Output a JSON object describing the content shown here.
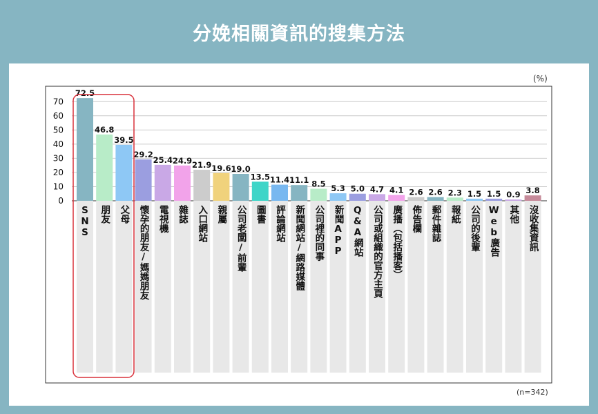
{
  "title": "分娩相關資訊的搜集方法",
  "unit": "(%)",
  "sample_size": "(n=342)",
  "colors": {
    "background": "#86b5c2",
    "highlight_box": "#d9303a",
    "bar_track": "#e8e8e8",
    "axis": "#333333",
    "grid": "#cccccc"
  },
  "highlight": [
    "SNS",
    "朋友",
    "父母"
  ],
  "chart_data": {
    "type": "bar",
    "title": "分娩相關資訊的搜集方法",
    "xlabel": "",
    "ylabel": "",
    "ylim": [
      0,
      75
    ],
    "yticks": [
      0,
      10,
      20,
      30,
      40,
      50,
      60,
      70
    ],
    "grid": true,
    "categories": [
      "SNS",
      "朋友",
      "父母",
      "懷孕的朋友/媽媽朋友",
      "電視機",
      "雜誌",
      "入口網站",
      "親屬",
      "公司老闆/前輩",
      "圖書",
      "評論網站",
      "新聞網站/網路媒體",
      "公司裡的同事",
      "新聞APP",
      "Q&A網站",
      "公司或組織的官方主頁",
      "廣播（包括播客）",
      "佈告欄",
      "郵件雜誌",
      "報紙",
      "公司的後輩",
      "Web廣告",
      "其他",
      "沒收集資訊"
    ],
    "value_labels": [
      "72.5",
      "46.8",
      "39.5",
      "29.2",
      "25.4",
      "24.9",
      "21.9",
      "19.6",
      "19.0",
      "13.5",
      "11.4",
      "11.1",
      "8.5",
      "5.3",
      "5.0",
      "4.7",
      "4.1",
      "2.6",
      "2.6",
      "2.3",
      "1.5",
      "1.5",
      "0.9",
      "3.8"
    ],
    "values": [
      72.5,
      46.8,
      39.5,
      29.2,
      25.4,
      24.9,
      21.9,
      19.6,
      19.0,
      13.5,
      11.4,
      11.1,
      8.5,
      5.3,
      5.0,
      4.7,
      4.1,
      2.6,
      2.6,
      2.3,
      1.5,
      1.5,
      0.9,
      3.8
    ],
    "bar_colors": [
      "#86b5c2",
      "#b8ecc8",
      "#8ec8f5",
      "#9b9ee0",
      "#c9a8e6",
      "#f2a3ea",
      "#cccccc",
      "#f0d27c",
      "#86b5c2",
      "#3ed5c8",
      "#78b8f0",
      "#86b5c2",
      "#b8ecc8",
      "#8ec8f5",
      "#9b9ee0",
      "#c9a8e6",
      "#f2a3ea",
      "#cccccc",
      "#86b5c2",
      "#b8ecc8",
      "#8ec8f5",
      "#9b9ee0",
      "#c9a8e6",
      "#c68a9a"
    ]
  }
}
